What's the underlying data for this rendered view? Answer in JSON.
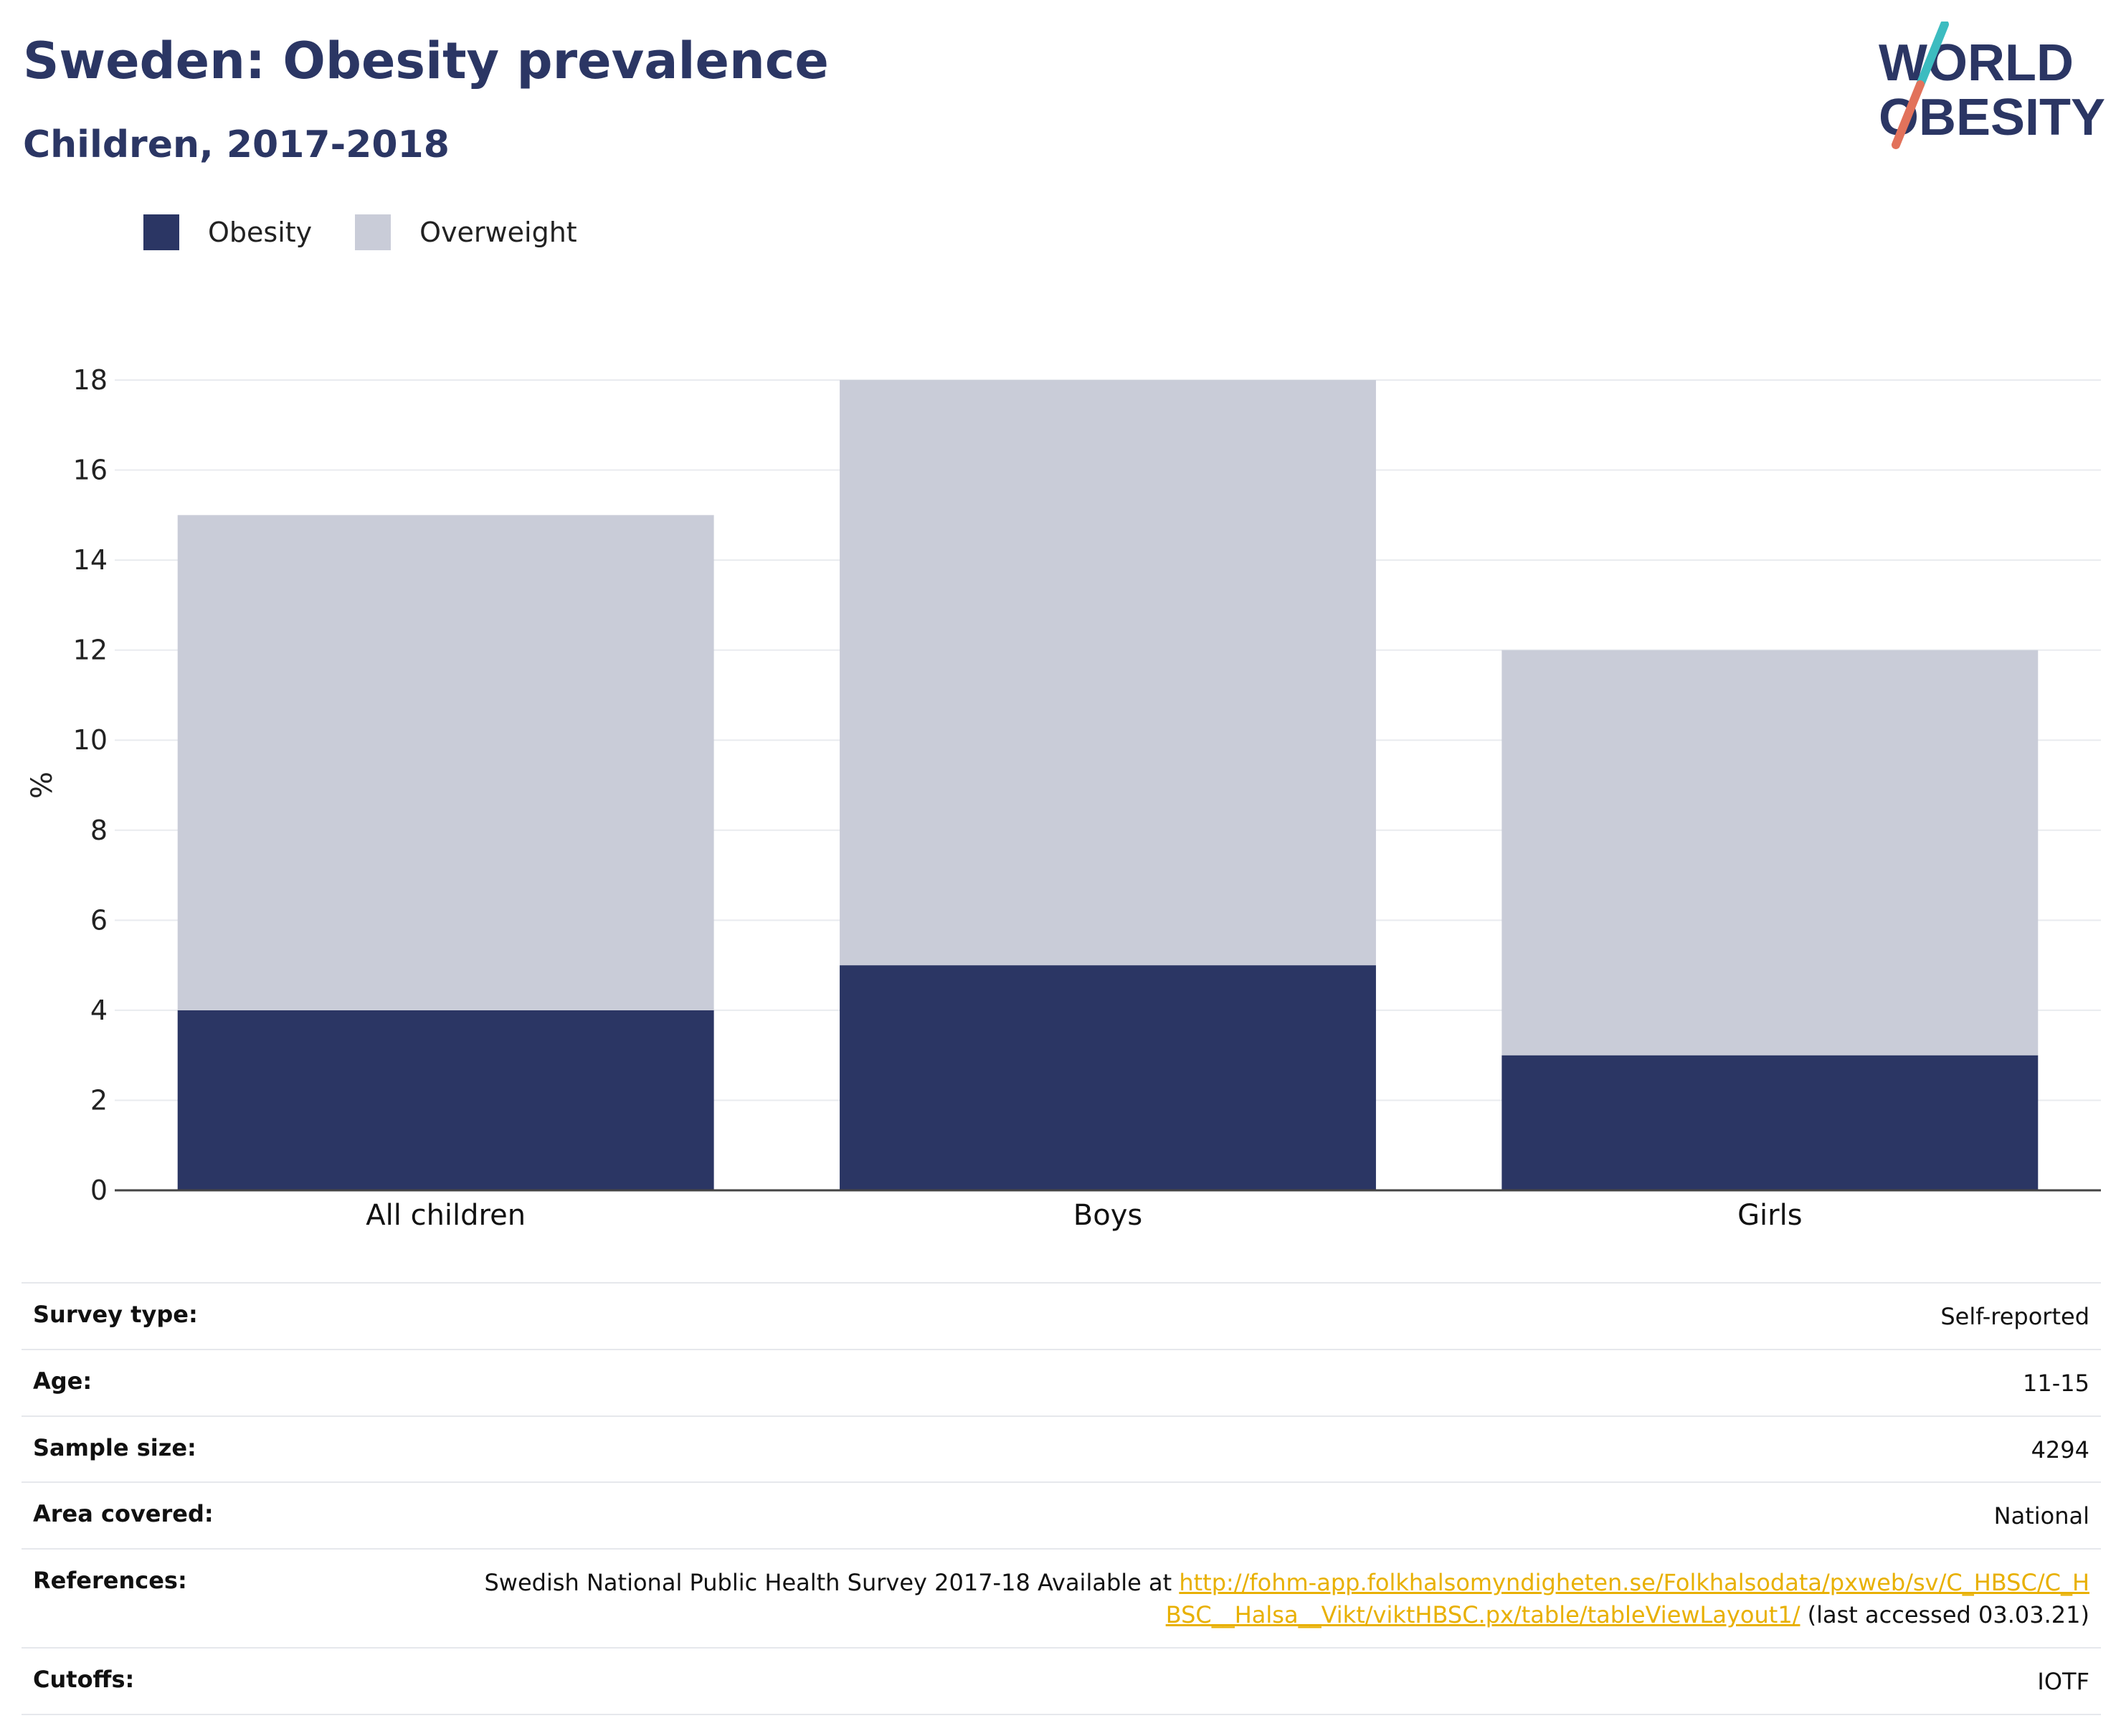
{
  "header": {
    "title": "Sweden: Obesity prevalence",
    "subtitle": "Children, 2017-2018"
  },
  "logo": {
    "line1": "WORLD",
    "line2": "OBESITY",
    "slash_colors": [
      "#3cbcc0",
      "#e2725b"
    ]
  },
  "legend": {
    "items": [
      {
        "label": "Obesity",
        "color": "#2b3664"
      },
      {
        "label": "Overweight",
        "color": "#c9ccd8"
      }
    ]
  },
  "chart_data": {
    "type": "bar",
    "stacked": true,
    "title": "Sweden: Obesity prevalence",
    "subtitle": "Children, 2017-2018",
    "categories": [
      "All children",
      "Boys",
      "Girls"
    ],
    "series": [
      {
        "name": "Obesity",
        "color": "#2b3664",
        "values": [
          4,
          5,
          3
        ]
      },
      {
        "name": "Overweight",
        "color": "#c9ccd8",
        "values": [
          11,
          13,
          9
        ]
      }
    ],
    "xlabel": "",
    "ylabel": "%",
    "ylim": [
      0,
      18
    ],
    "yticks": [
      0,
      2,
      4,
      6,
      8,
      10,
      12,
      14,
      16,
      18
    ],
    "grid": true,
    "legend_position": "top-left"
  },
  "meta": {
    "rows": [
      {
        "label": "Survey type:",
        "value": "Self-reported"
      },
      {
        "label": "Age:",
        "value": "11-15"
      },
      {
        "label": "Sample size:",
        "value": "4294"
      },
      {
        "label": "Area covered:",
        "value": "National"
      }
    ],
    "references": {
      "label": "References:",
      "prefix": "Swedish National Public Health Survey 2017-18 Available at ",
      "link": "http://fohm-app.folkhalsomyndigheten.se/Folkhalsodata/pxweb/sv/C_HBSC/C_HBSC__Halsa__Vikt/viktHBSC.px/table/tableViewLayout1/",
      "suffix": " (last accessed 03.03.21)"
    },
    "cutoffs": {
      "label": "Cutoffs:",
      "value": "IOTF"
    }
  }
}
